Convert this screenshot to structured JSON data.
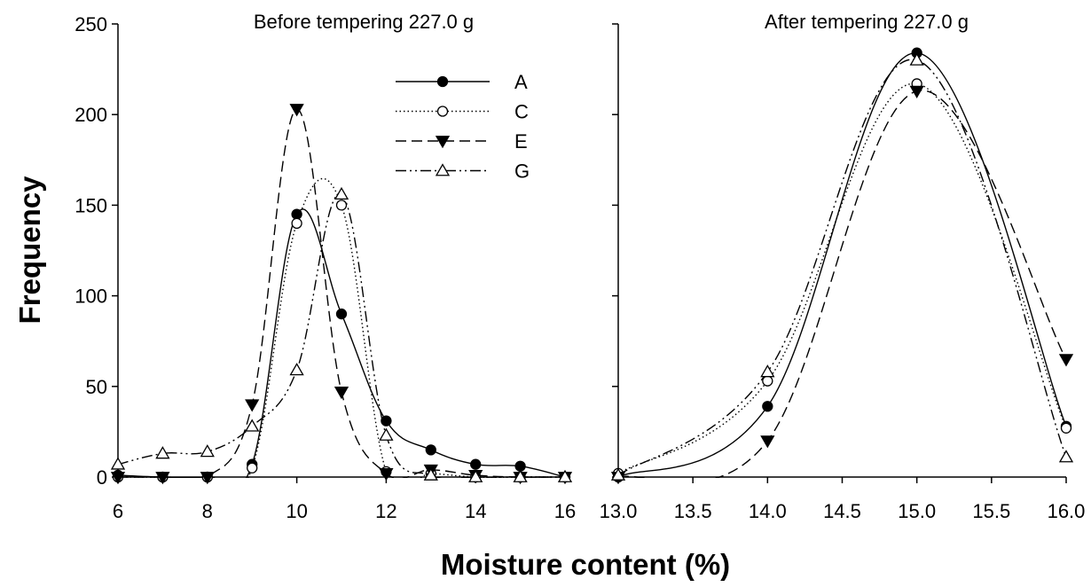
{
  "chart_data": [
    {
      "type": "line",
      "title": "Before tempering 227.0 g",
      "xlabel": "Moisture content (%)",
      "ylabel": "Frequency",
      "xlim": [
        6,
        16
      ],
      "ylim": [
        0,
        250
      ],
      "x_ticks": [
        "6",
        "8",
        "10",
        "12",
        "14",
        "16"
      ],
      "y_ticks": [
        "0",
        "50",
        "100",
        "150",
        "200",
        "250"
      ],
      "x": [
        6,
        7,
        8,
        9,
        10,
        11,
        12,
        13,
        14,
        15,
        16
      ],
      "legend_position": "top-right",
      "series": [
        {
          "name": "A",
          "marker": "filled-circle",
          "dash": "solid",
          "values": [
            1,
            0,
            0,
            7,
            145,
            90,
            31,
            15,
            7,
            6,
            0
          ]
        },
        {
          "name": "C",
          "marker": "open-circle",
          "dash": "dotted",
          "values": [
            0,
            0,
            0,
            5,
            140,
            150,
            3,
            2,
            0,
            0,
            0
          ]
        },
        {
          "name": "E",
          "marker": "filled-triangle-down",
          "dash": "dashed",
          "values": [
            0,
            0,
            0,
            40,
            203,
            47,
            2,
            4,
            1,
            0,
            0
          ]
        },
        {
          "name": "G",
          "marker": "open-triangle-up",
          "dash": "dash-dot-dot",
          "values": [
            7,
            13,
            14,
            28,
            59,
            156,
            23,
            1,
            0,
            0,
            0
          ]
        }
      ]
    },
    {
      "type": "line",
      "title": "After tempering 227.0 g",
      "xlabel": "Moisture content (%)",
      "xlim": [
        13.0,
        16.0
      ],
      "ylim": [
        0,
        250
      ],
      "x_ticks": [
        "13.0",
        "13.5",
        "14.0",
        "14.5",
        "15.0",
        "15.5",
        "16.0"
      ],
      "x": [
        13,
        14,
        15,
        16
      ],
      "series": [
        {
          "name": "A",
          "marker": "filled-circle",
          "dash": "solid",
          "values": [
            0,
            39,
            234,
            28
          ]
        },
        {
          "name": "C",
          "marker": "open-circle",
          "dash": "dotted",
          "values": [
            2,
            53,
            217,
            27
          ]
        },
        {
          "name": "E",
          "marker": "filled-triangle-down",
          "dash": "dashed",
          "values": [
            0,
            20,
            213,
            65
          ]
        },
        {
          "name": "G",
          "marker": "open-triangle-up",
          "dash": "dash-dot-dot",
          "values": [
            1,
            58,
            230,
            11
          ]
        }
      ]
    }
  ]
}
